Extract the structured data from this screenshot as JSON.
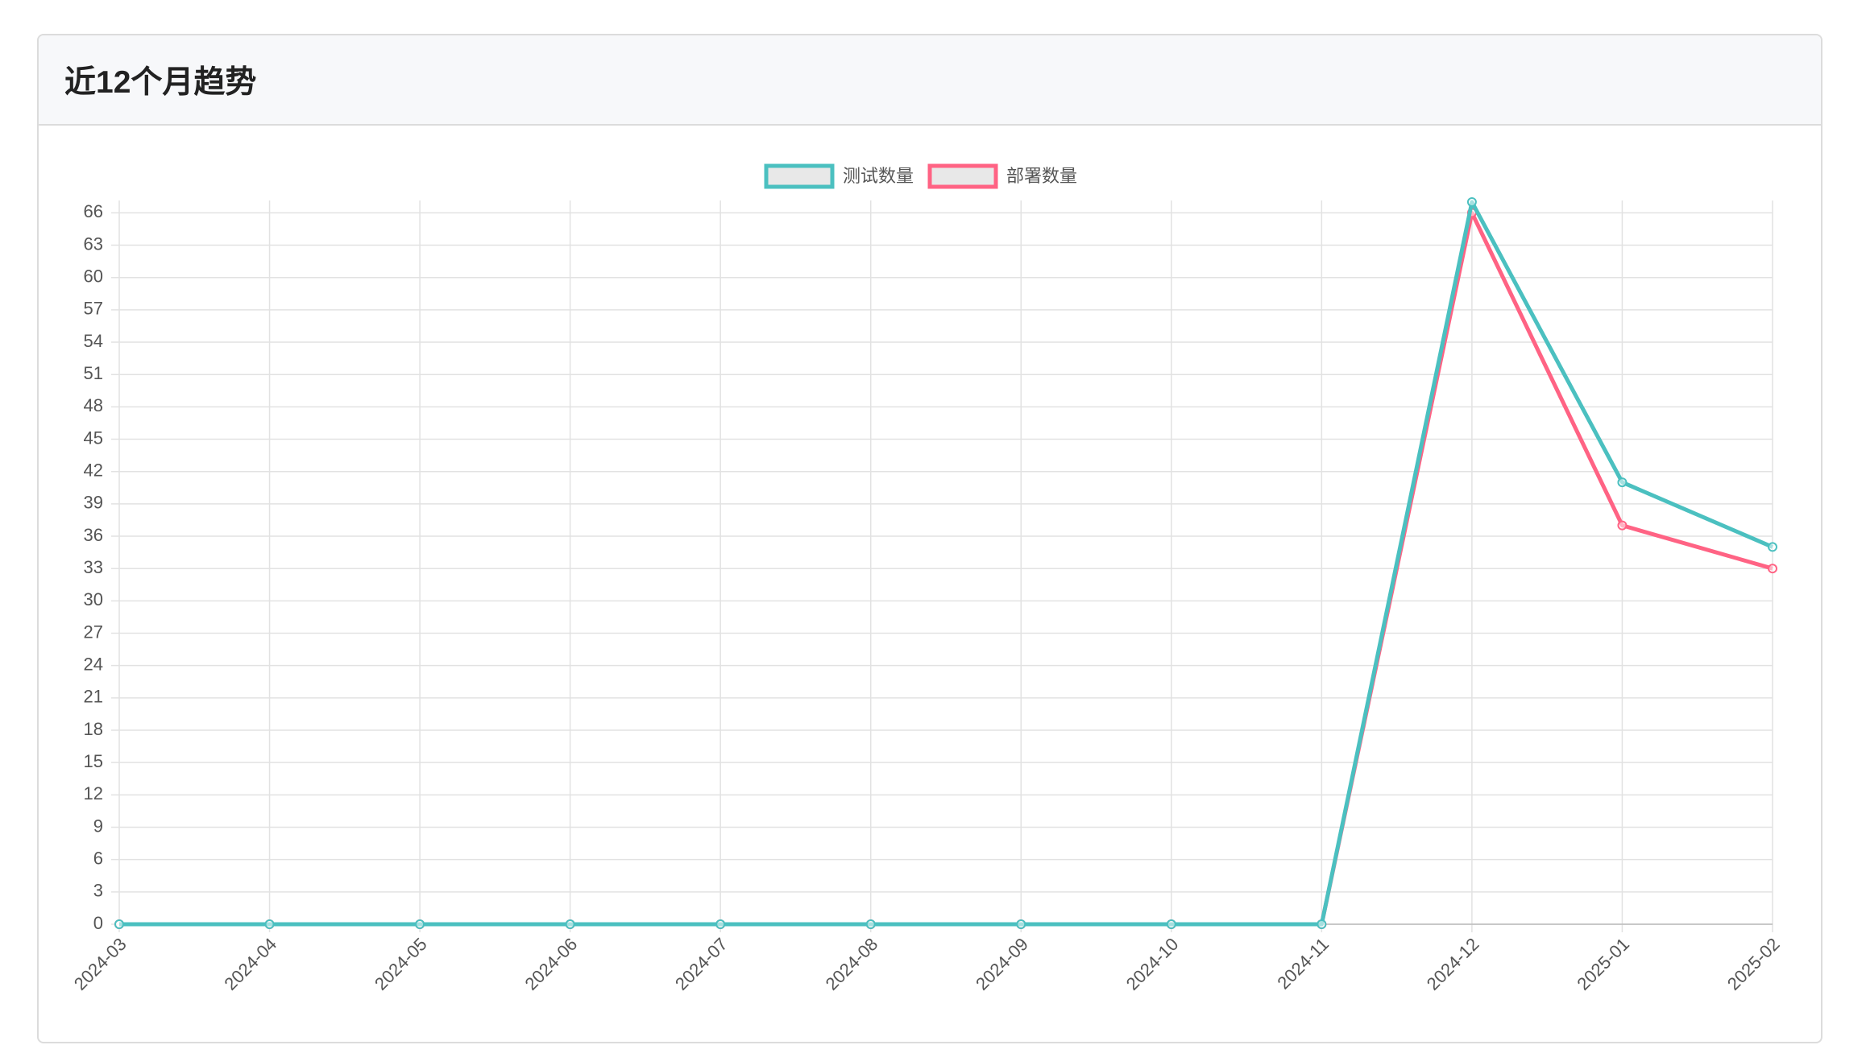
{
  "chart_data": {
    "type": "line",
    "title": "近12个月趋势",
    "categories": [
      "2024-03",
      "2024-04",
      "2024-05",
      "2024-06",
      "2024-07",
      "2024-08",
      "2024-09",
      "2024-10",
      "2024-11",
      "2024-12",
      "2025-01",
      "2025-02"
    ],
    "series": [
      {
        "name": "测试数量",
        "color": "#4bc0c0",
        "values": [
          0,
          0,
          0,
          0,
          0,
          0,
          0,
          0,
          0,
          67,
          41,
          35
        ]
      },
      {
        "name": "部署数量",
        "color": "#ff6384",
        "values": [
          0,
          0,
          0,
          0,
          0,
          0,
          0,
          0,
          0,
          66,
          37,
          33
        ]
      }
    ],
    "ylim": [
      0,
      67
    ],
    "yticks": [
      0,
      3,
      6,
      9,
      12,
      15,
      18,
      21,
      24,
      27,
      30,
      33,
      36,
      39,
      42,
      45,
      48,
      51,
      54,
      57,
      60,
      63,
      66
    ],
    "grid": true,
    "legend": "top"
  }
}
